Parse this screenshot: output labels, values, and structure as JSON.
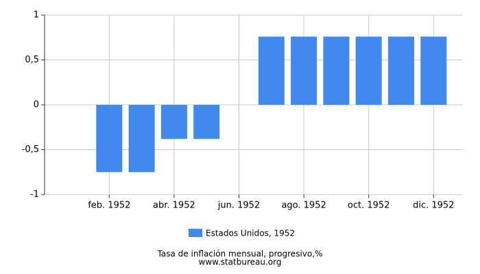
{
  "chart_data": {
    "type": "bar",
    "categories": [
      null,
      "feb. 1952",
      null,
      "abr. 1952",
      null,
      "jun. 1952",
      null,
      "ago. 1952",
      null,
      "oct. 1952",
      null,
      "dic. 1952"
    ],
    "series": [
      {
        "name": "Estados Unidos, 1952",
        "color": "#4189ef",
        "values": [
          0,
          -0.75,
          -0.75,
          -0.38,
          -0.38,
          0,
          0.76,
          0.76,
          0.76,
          0.76,
          0.76,
          0.76
        ]
      }
    ],
    "ylim": [
      -1,
      1
    ],
    "yticks": [
      -1,
      {
        "value": -0.5,
        "label": "-0,5"
      },
      0,
      {
        "value": 0.5,
        "label": "0,5"
      },
      1
    ],
    "grid": true,
    "xlabel": "Tasa de inflación mensual, progresivo,%",
    "source": "www.statbureau.org"
  }
}
